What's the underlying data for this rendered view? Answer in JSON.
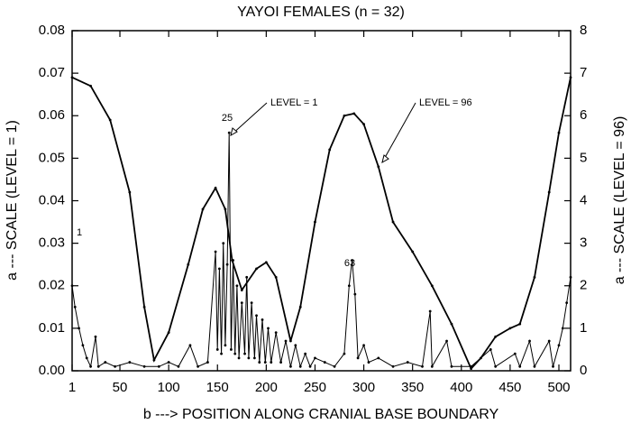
{
  "chart_data": {
    "type": "line",
    "title": "YAYOI FEMALES (n = 32)",
    "x_label": "b ---> POSITION ALONG CRANIAL BASE BOUNDARY",
    "y_label": "a --- SCALE (LEVEL = 1)",
    "y2_label": "a --- SCALE (LEVEL = 96)",
    "xlim": [
      1,
      512
    ],
    "xticks": [
      1,
      50,
      100,
      150,
      200,
      250,
      300,
      350,
      400,
      450,
      500
    ],
    "ylim": [
      0,
      0.08
    ],
    "yticks": [
      {
        "value": 0,
        "label": "0.00"
      },
      {
        "value": 0.01,
        "label": "0.01"
      },
      {
        "value": 0.02,
        "label": "0.02"
      },
      {
        "value": 0.03,
        "label": "0.03"
      },
      {
        "value": 0.04,
        "label": "0.04"
      },
      {
        "value": 0.05,
        "label": "0.05"
      },
      {
        "value": 0.06,
        "label": "0.06"
      },
      {
        "value": 0.07,
        "label": "0.07"
      },
      {
        "value": 0.08,
        "label": "0.08"
      }
    ],
    "y2lim": [
      0,
      8
    ],
    "y2ticks": [
      0,
      1,
      2,
      3,
      4,
      5,
      6,
      7,
      8
    ],
    "series": [
      {
        "name": "LEVEL = 1",
        "color": "#000000",
        "x": [
          1,
          4,
          8,
          12,
          16,
          20,
          25,
          28,
          35,
          45,
          60,
          75,
          90,
          100,
          110,
          122,
          130,
          140,
          148,
          150,
          152,
          154,
          156,
          158,
          160,
          162,
          164,
          166,
          168,
          170,
          172,
          175,
          178,
          180,
          182,
          185,
          188,
          190,
          193,
          196,
          199,
          202,
          205,
          210,
          215,
          220,
          225,
          230,
          235,
          240,
          245,
          250,
          260,
          270,
          280,
          285,
          288,
          291,
          294,
          300,
          305,
          315,
          330,
          345,
          360,
          368,
          370,
          385,
          390,
          410,
          430,
          435,
          455,
          460,
          470,
          475,
          490,
          494,
          500,
          504,
          508,
          512
        ],
        "values": [
          0.02,
          0.015,
          0.01,
          0.006,
          0.003,
          0.001,
          0.008,
          0.001,
          0.002,
          0.001,
          0.002,
          0.001,
          0.001,
          0.002,
          0.001,
          0.006,
          0.001,
          0.002,
          0.028,
          0.005,
          0.024,
          0.004,
          0.03,
          0.006,
          0.025,
          0.056,
          0.005,
          0.026,
          0.004,
          0.02,
          0.003,
          0.016,
          0.004,
          0.022,
          0.003,
          0.016,
          0.003,
          0.013,
          0.002,
          0.012,
          0.002,
          0.01,
          0.002,
          0.009,
          0.002,
          0.007,
          0.001,
          0.006,
          0.001,
          0.004,
          0.001,
          0.003,
          0.002,
          0.001,
          0.004,
          0.02,
          0.026,
          0.018,
          0.003,
          0.006,
          0.002,
          0.003,
          0.001,
          0.002,
          0.001,
          0.014,
          0.001,
          0.007,
          0.001,
          0.001,
          0.005,
          0.001,
          0.004,
          0.001,
          0.007,
          0.001,
          0.007,
          0.001,
          0.006,
          0.01,
          0.016,
          0.022
        ]
      },
      {
        "name": "LEVEL = 96",
        "color": "#000000",
        "axis": "y2",
        "x": [
          1,
          20,
          40,
          60,
          75,
          85,
          100,
          120,
          135,
          148,
          158,
          165,
          175,
          190,
          200,
          210,
          225,
          235,
          250,
          265,
          280,
          290,
          300,
          315,
          330,
          350,
          370,
          390,
          410,
          420,
          435,
          450,
          460,
          475,
          490,
          500,
          512
        ],
        "values": [
          6.9,
          6.7,
          5.9,
          4.2,
          1.5,
          0.25,
          0.9,
          2.5,
          3.8,
          4.3,
          3.8,
          2.6,
          1.9,
          2.4,
          2.55,
          2.2,
          0.7,
          1.5,
          3.5,
          5.2,
          6.0,
          6.05,
          5.8,
          4.8,
          3.5,
          2.8,
          2.0,
          1.1,
          0.05,
          0.3,
          0.8,
          1.0,
          1.1,
          2.2,
          4.2,
          5.6,
          6.9
        ]
      }
    ],
    "annotations": [
      "1",
      "25",
      "63"
    ]
  }
}
